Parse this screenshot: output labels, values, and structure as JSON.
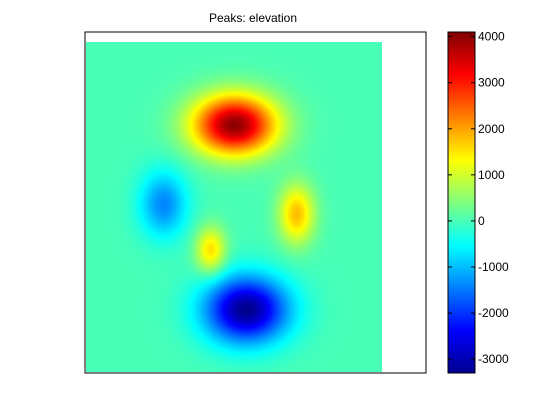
{
  "chart_data": {
    "type": "heatmap",
    "title": "Peaks: elevation",
    "xlabel": "",
    "ylabel": "",
    "colormap": "jet",
    "colorbar": {
      "min": -3300,
      "max": 4100,
      "ticks": [
        4000,
        3000,
        2000,
        1000,
        0,
        -1000,
        -2000,
        -3000
      ],
      "tick_labels": [
        "4000",
        "3000",
        "2000",
        "1000",
        "0",
        "-1000",
        "-2000",
        "-3000"
      ]
    },
    "background_value": 0,
    "features": [
      {
        "kind": "peak",
        "cx": 0.5,
        "cy": 0.25,
        "rx": 0.14,
        "ry": 0.09,
        "value": 4000
      },
      {
        "kind": "trough",
        "cx": 0.54,
        "cy": 0.81,
        "rx": 0.14,
        "ry": 0.1,
        "value": -3200
      },
      {
        "kind": "trough",
        "cx": 0.26,
        "cy": 0.49,
        "rx": 0.08,
        "ry": 0.1,
        "value": -1400
      },
      {
        "kind": "peak",
        "cx": 0.71,
        "cy": 0.52,
        "rx": 0.06,
        "ry": 0.09,
        "value": 1800
      },
      {
        "kind": "peak",
        "cx": 0.42,
        "cy": 0.63,
        "rx": 0.05,
        "ry": 0.07,
        "value": 1600
      }
    ],
    "grid": false
  }
}
